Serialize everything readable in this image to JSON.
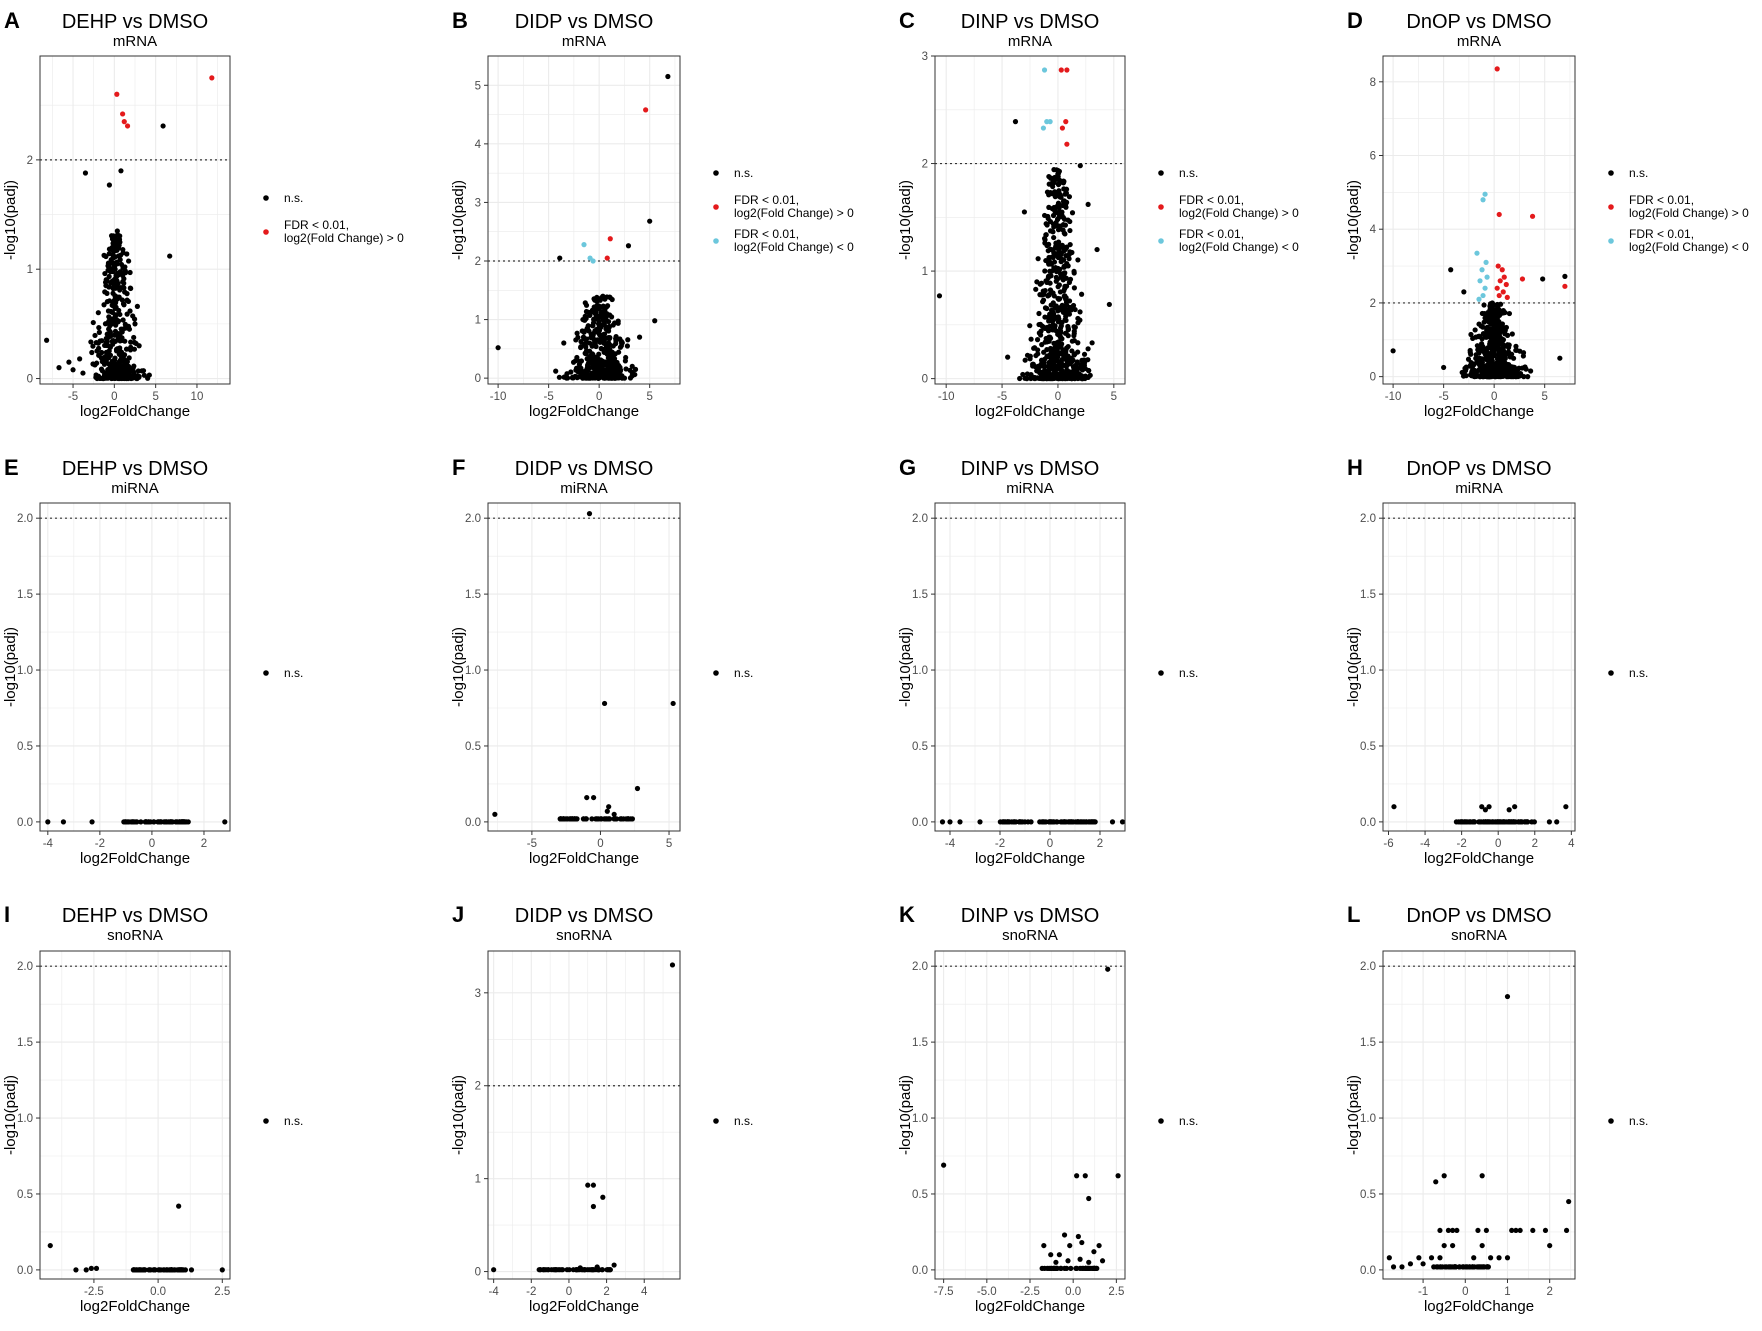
{
  "figure": {
    "axis_title_x": "log2FoldChange",
    "axis_title_y": "-log10(padj)",
    "colors": {
      "ns": "#000000",
      "up": "#e41a1c",
      "down": "#6cc7dc",
      "grid": "#ebebeb",
      "panel_border": "#333333",
      "threshold_line": "#333333"
    },
    "legend_labels": {
      "ns": "n.s.",
      "up": [
        "FDR < 0.01,",
        "log2(Fold Change) > 0"
      ],
      "down": [
        "FDR < 0.01,",
        "log2(Fold Change) < 0"
      ]
    }
  },
  "chart_data": [
    {
      "id": "A",
      "type": "scatter",
      "title": "DEHP vs DMSO",
      "subtitle": "mRNA",
      "xlim": [
        -9,
        14
      ],
      "ylim": [
        -0.05,
        2.95
      ],
      "xticks": [
        -5,
        0,
        5,
        10
      ],
      "yticks": [
        0,
        1,
        2
      ],
      "threshold": 2,
      "legend": [
        "ns",
        "up"
      ],
      "points": {
        "up": [
          [
            0.3,
            2.6
          ],
          [
            1.0,
            2.42
          ],
          [
            1.2,
            2.35
          ],
          [
            1.6,
            2.31
          ],
          [
            11.8,
            2.75
          ]
        ],
        "ns": [
          [
            -8.2,
            0.35
          ],
          [
            -6.7,
            0.1
          ],
          [
            -5.5,
            0.15
          ],
          [
            -4.2,
            0.18
          ],
          [
            -3.5,
            1.88
          ],
          [
            -0.6,
            1.77
          ],
          [
            0.8,
            1.9
          ],
          [
            5.9,
            2.31
          ],
          [
            6.7,
            1.12
          ],
          [
            -5.0,
            0.08
          ],
          [
            2.5,
            0.5
          ],
          [
            3.0,
            0.3
          ],
          [
            -3.8,
            0.05
          ]
        ]
      },
      "cloud": [
        {
          "x0": 0.2,
          "sx": 1.1,
          "ymax": 1.35,
          "n": 440
        }
      ]
    },
    {
      "id": "B",
      "type": "scatter",
      "title": "DIDP vs DMSO",
      "subtitle": "mRNA",
      "xlim": [
        -11,
        8
      ],
      "ylim": [
        -0.1,
        5.5
      ],
      "xticks": [
        -10,
        -5,
        0,
        5
      ],
      "yticks": [
        0,
        1,
        2,
        3,
        4,
        5
      ],
      "threshold": 2,
      "legend": [
        "ns",
        "up",
        "down"
      ],
      "points": {
        "up": [
          [
            4.6,
            4.58
          ],
          [
            1.1,
            2.38
          ],
          [
            0.8,
            2.05
          ]
        ],
        "down": [
          [
            -1.5,
            2.28
          ],
          [
            -0.9,
            2.05
          ],
          [
            -0.6,
            2.0
          ]
        ],
        "ns": [
          [
            6.8,
            5.15
          ],
          [
            5.0,
            2.68
          ],
          [
            2.9,
            2.26
          ],
          [
            -3.9,
            2.05
          ],
          [
            -10.0,
            0.52
          ],
          [
            5.5,
            0.98
          ],
          [
            4.0,
            0.7
          ],
          [
            -3.5,
            0.6
          ],
          [
            -4.3,
            0.12
          ],
          [
            3.6,
            0.15
          ]
        ]
      },
      "cloud": [
        {
          "x0": 0.1,
          "sx": 1.3,
          "ymax": 1.4,
          "n": 440
        }
      ]
    },
    {
      "id": "C",
      "type": "scatter",
      "title": "DINP vs DMSO",
      "subtitle": "mRNA",
      "xlim": [
        -11,
        6
      ],
      "ylim": [
        -0.05,
        3.0
      ],
      "xticks": [
        -10,
        -5,
        0,
        5
      ],
      "yticks": [
        0,
        1,
        2,
        3
      ],
      "threshold": 2,
      "legend": [
        "ns",
        "up",
        "down"
      ],
      "points": {
        "up": [
          [
            0.3,
            2.87
          ],
          [
            0.8,
            2.87
          ],
          [
            0.7,
            2.39
          ],
          [
            0.4,
            2.33
          ],
          [
            0.8,
            2.18
          ]
        ],
        "down": [
          [
            -1.2,
            2.87
          ],
          [
            -1.0,
            2.39
          ],
          [
            -0.7,
            2.39
          ],
          [
            -1.3,
            2.33
          ]
        ],
        "ns": [
          [
            -3.8,
            2.39
          ],
          [
            2.0,
            1.98
          ],
          [
            -10.6,
            0.77
          ],
          [
            4.6,
            0.69
          ],
          [
            3.5,
            1.2
          ],
          [
            -4.5,
            0.2
          ],
          [
            -3.0,
            1.55
          ],
          [
            2.7,
            1.62
          ]
        ]
      },
      "cloud": [
        {
          "x0": 0.0,
          "sx": 1.0,
          "ymax": 1.95,
          "n": 650
        }
      ]
    },
    {
      "id": "D",
      "type": "scatter",
      "title": "DnOP vs DMSO",
      "subtitle": "mRNA",
      "xlim": [
        -11,
        8
      ],
      "ylim": [
        -0.2,
        8.7
      ],
      "xticks": [
        -10,
        -5,
        0,
        5
      ],
      "yticks": [
        0,
        2,
        4,
        6,
        8
      ],
      "threshold": 2,
      "legend": [
        "ns",
        "up",
        "down"
      ],
      "points": {
        "up": [
          [
            0.3,
            8.35
          ],
          [
            0.5,
            4.4
          ],
          [
            3.8,
            4.35
          ],
          [
            7.0,
            2.45
          ],
          [
            0.4,
            3.0
          ],
          [
            0.8,
            2.9
          ],
          [
            1.0,
            2.7
          ],
          [
            0.6,
            2.6
          ],
          [
            1.2,
            2.5
          ],
          [
            0.3,
            2.4
          ],
          [
            0.9,
            2.3
          ],
          [
            0.5,
            2.2
          ],
          [
            1.3,
            2.15
          ],
          [
            2.8,
            2.65
          ]
        ],
        "down": [
          [
            -0.9,
            4.95
          ],
          [
            -1.1,
            4.8
          ],
          [
            -1.7,
            3.35
          ],
          [
            -0.8,
            3.1
          ],
          [
            -1.2,
            2.9
          ],
          [
            -0.7,
            2.7
          ],
          [
            -1.4,
            2.6
          ],
          [
            -0.9,
            2.4
          ],
          [
            -1.1,
            2.2
          ],
          [
            -1.5,
            2.1
          ]
        ],
        "ns": [
          [
            -10.0,
            0.7
          ],
          [
            -4.3,
            2.9
          ],
          [
            7.0,
            2.72
          ],
          [
            -3.0,
            2.3
          ],
          [
            4.8,
            2.65
          ],
          [
            -5.0,
            0.25
          ],
          [
            6.5,
            0.5
          ]
        ]
      },
      "cloud": [
        {
          "x0": 0.0,
          "sx": 1.2,
          "ymax": 2.0,
          "n": 520
        }
      ]
    },
    {
      "id": "E",
      "type": "scatter",
      "title": "DEHP vs DMSO",
      "subtitle": "miRNA",
      "xlim": [
        -4.3,
        3.0
      ],
      "ylim": [
        -0.06,
        2.1
      ],
      "xticks": [
        -4,
        -2,
        0,
        2
      ],
      "yticks": [
        0,
        0.5,
        1.0,
        1.5,
        2.0
      ],
      "threshold": 2,
      "legend": [
        "ns"
      ],
      "points": {
        "ns": [
          [
            -4.0,
            0
          ],
          [
            -3.4,
            0
          ],
          [
            -2.3,
            0
          ],
          [
            2.8,
            0
          ]
        ]
      },
      "cloud": [
        {
          "x0": -1.1,
          "x1": 1.4,
          "y": 0,
          "n": 60
        }
      ]
    },
    {
      "id": "F",
      "type": "scatter",
      "title": "DIDP vs DMSO",
      "subtitle": "miRNA",
      "xlim": [
        -8.2,
        5.8
      ],
      "ylim": [
        -0.06,
        2.1
      ],
      "xticks": [
        -5,
        0,
        5
      ],
      "yticks": [
        0,
        0.5,
        1.0,
        1.5,
        2.0
      ],
      "threshold": 2,
      "legend": [
        "ns"
      ],
      "points": {
        "ns": [
          [
            -0.8,
            2.03
          ],
          [
            0.3,
            0.78
          ],
          [
            5.3,
            0.78
          ],
          [
            -7.7,
            0.05
          ],
          [
            2.7,
            0.22
          ],
          [
            -1.0,
            0.16
          ],
          [
            -0.5,
            0.16
          ],
          [
            0.6,
            0.1
          ],
          [
            1.0,
            0.05
          ],
          [
            0.5,
            0.07
          ]
        ]
      },
      "cloud": [
        {
          "x0": -3.0,
          "x1": 2.4,
          "y": 0.02,
          "n": 60
        }
      ]
    },
    {
      "id": "G",
      "type": "scatter",
      "title": "DINP vs DMSO",
      "subtitle": "miRNA",
      "xlim": [
        -4.6,
        3.0
      ],
      "ylim": [
        -0.06,
        2.1
      ],
      "xticks": [
        -4,
        -2,
        0,
        2
      ],
      "yticks": [
        0,
        0.5,
        1.0,
        1.5,
        2.0
      ],
      "threshold": 2,
      "legend": [
        "ns"
      ],
      "points": {
        "ns": [
          [
            -4.3,
            0
          ],
          [
            -4.0,
            0
          ],
          [
            -3.6,
            0
          ],
          [
            -2.8,
            0
          ],
          [
            2.5,
            0
          ],
          [
            2.9,
            0
          ]
        ]
      },
      "cloud": [
        {
          "x0": -2.0,
          "x1": 2.0,
          "y": 0,
          "n": 80
        }
      ]
    },
    {
      "id": "H",
      "type": "scatter",
      "title": "DnOP vs DMSO",
      "subtitle": "miRNA",
      "xlim": [
        -6.3,
        4.2
      ],
      "ylim": [
        -0.06,
        2.1
      ],
      "xticks": [
        -6,
        -4,
        -2,
        0,
        2,
        4
      ],
      "yticks": [
        0,
        0.5,
        1.0,
        1.5,
        2.0
      ],
      "threshold": 2,
      "legend": [
        "ns"
      ],
      "points": {
        "ns": [
          [
            -5.7,
            0.1
          ],
          [
            3.7,
            0.1
          ],
          [
            -0.9,
            0.1
          ],
          [
            -0.5,
            0.1
          ],
          [
            0.9,
            0.1
          ],
          [
            0.6,
            0.08
          ],
          [
            -0.7,
            0.08
          ],
          [
            2.8,
            0
          ],
          [
            3.2,
            0
          ]
        ]
      },
      "cloud": [
        {
          "x0": -2.3,
          "x1": 2.0,
          "y": 0,
          "n": 80
        }
      ]
    },
    {
      "id": "I",
      "type": "scatter",
      "title": "DEHP vs DMSO",
      "subtitle": "snoRNA",
      "xlim": [
        -4.6,
        2.8
      ],
      "ylim": [
        -0.06,
        2.1
      ],
      "xticks": [
        -2.5,
        0.0,
        2.5
      ],
      "tickfmt": 1,
      "yticks": [
        0,
        0.5,
        1.0,
        1.5,
        2.0
      ],
      "threshold": 2,
      "legend": [
        "ns"
      ],
      "points": {
        "ns": [
          [
            -4.2,
            0.16
          ],
          [
            0.8,
            0.42
          ],
          [
            -3.2,
            0
          ],
          [
            -2.8,
            0
          ],
          [
            -2.4,
            0.01
          ],
          [
            -2.6,
            0.01
          ],
          [
            2.5,
            0
          ],
          [
            1.3,
            0
          ],
          [
            0.9,
            0
          ]
        ]
      },
      "cloud": [
        {
          "x0": -1.0,
          "x1": 1.1,
          "y": 0,
          "n": 60
        }
      ]
    },
    {
      "id": "J",
      "type": "scatter",
      "title": "DIDP vs DMSO",
      "subtitle": "snoRNA",
      "xlim": [
        -4.3,
        5.9
      ],
      "ylim": [
        -0.08,
        3.45
      ],
      "xticks": [
        -4,
        -2,
        0,
        2,
        4
      ],
      "yticks": [
        0,
        1,
        2,
        3
      ],
      "threshold": 2,
      "legend": [
        "ns"
      ],
      "points": {
        "ns": [
          [
            5.5,
            3.3
          ],
          [
            1.0,
            0.93
          ],
          [
            1.3,
            0.93
          ],
          [
            1.3,
            0.7
          ],
          [
            1.8,
            0.8
          ],
          [
            -4.0,
            0.02
          ],
          [
            2.4,
            0.07
          ],
          [
            1.5,
            0.05
          ],
          [
            0.6,
            0.04
          ]
        ]
      },
      "cloud": [
        {
          "x0": -1.7,
          "x1": 2.2,
          "y": 0.02,
          "n": 55
        }
      ]
    },
    {
      "id": "K",
      "type": "scatter",
      "title": "DINP vs DMSO",
      "subtitle": "snoRNA",
      "xlim": [
        -8.0,
        3.0
      ],
      "ylim": [
        -0.06,
        2.1
      ],
      "xticks": [
        -7.5,
        -5.0,
        -2.5,
        0.0,
        2.5
      ],
      "tickfmt": 1,
      "yticks": [
        0,
        0.5,
        1.0,
        1.5,
        2.0
      ],
      "threshold": 2,
      "legend": [
        "ns"
      ],
      "points": {
        "ns": [
          [
            2.0,
            1.98
          ],
          [
            -7.5,
            0.69
          ],
          [
            0.2,
            0.62
          ],
          [
            0.7,
            0.62
          ],
          [
            2.6,
            0.62
          ],
          [
            0.9,
            0.47
          ],
          [
            -1.7,
            0.16
          ],
          [
            -1.3,
            0.1
          ],
          [
            -0.5,
            0.23
          ],
          [
            0.3,
            0.22
          ],
          [
            0.5,
            0.18
          ],
          [
            -0.2,
            0.16
          ],
          [
            1.2,
            0.12
          ],
          [
            1.5,
            0.16
          ],
          [
            -0.8,
            0.1
          ],
          [
            0.9,
            0.05
          ],
          [
            1.7,
            0.06
          ],
          [
            -1.0,
            0.05
          ],
          [
            -0.3,
            0.06
          ],
          [
            0.4,
            0.07
          ]
        ]
      },
      "cloud": [
        {
          "x0": -1.9,
          "x1": 1.6,
          "y": 0.01,
          "n": 40
        }
      ]
    },
    {
      "id": "L",
      "type": "scatter",
      "title": "DnOP vs DMSO",
      "subtitle": "snoRNA",
      "xlim": [
        -1.95,
        2.6
      ],
      "ylim": [
        -0.06,
        2.1
      ],
      "xticks": [
        -1,
        0,
        1,
        2
      ],
      "yticks": [
        0,
        0.5,
        1.0,
        1.5,
        2.0
      ],
      "threshold": 2,
      "legend": [
        "ns"
      ],
      "points": {
        "ns": [
          [
            1.0,
            1.8
          ],
          [
            -0.5,
            0.62
          ],
          [
            0.4,
            0.62
          ],
          [
            -0.7,
            0.58
          ],
          [
            2.45,
            0.45
          ],
          [
            -1.8,
            0.08
          ],
          [
            -1.7,
            0.02
          ],
          [
            -1.5,
            0.02
          ],
          [
            -1.3,
            0.04
          ],
          [
            2.4,
            0.26
          ],
          [
            1.9,
            0.26
          ],
          [
            1.6,
            0.26
          ],
          [
            1.2,
            0.26
          ],
          [
            1.1,
            0.26
          ],
          [
            1.3,
            0.26
          ],
          [
            2.0,
            0.16
          ],
          [
            -0.6,
            0.26
          ],
          [
            -0.4,
            0.26
          ],
          [
            -0.3,
            0.26
          ],
          [
            -0.2,
            0.26
          ],
          [
            0.3,
            0.26
          ],
          [
            0.5,
            0.26
          ],
          [
            -0.5,
            0.16
          ],
          [
            -0.3,
            0.16
          ],
          [
            0.4,
            0.16
          ],
          [
            -0.8,
            0.08
          ],
          [
            -0.6,
            0.08
          ],
          [
            0.2,
            0.08
          ],
          [
            0.6,
            0.08
          ],
          [
            0.8,
            0.08
          ],
          [
            1.0,
            0.08
          ],
          [
            -1.0,
            0.04
          ],
          [
            -1.1,
            0.08
          ]
        ]
      },
      "cloud": [
        {
          "x0": -0.8,
          "x1": 0.6,
          "y": 0.02,
          "n": 45
        }
      ]
    }
  ]
}
